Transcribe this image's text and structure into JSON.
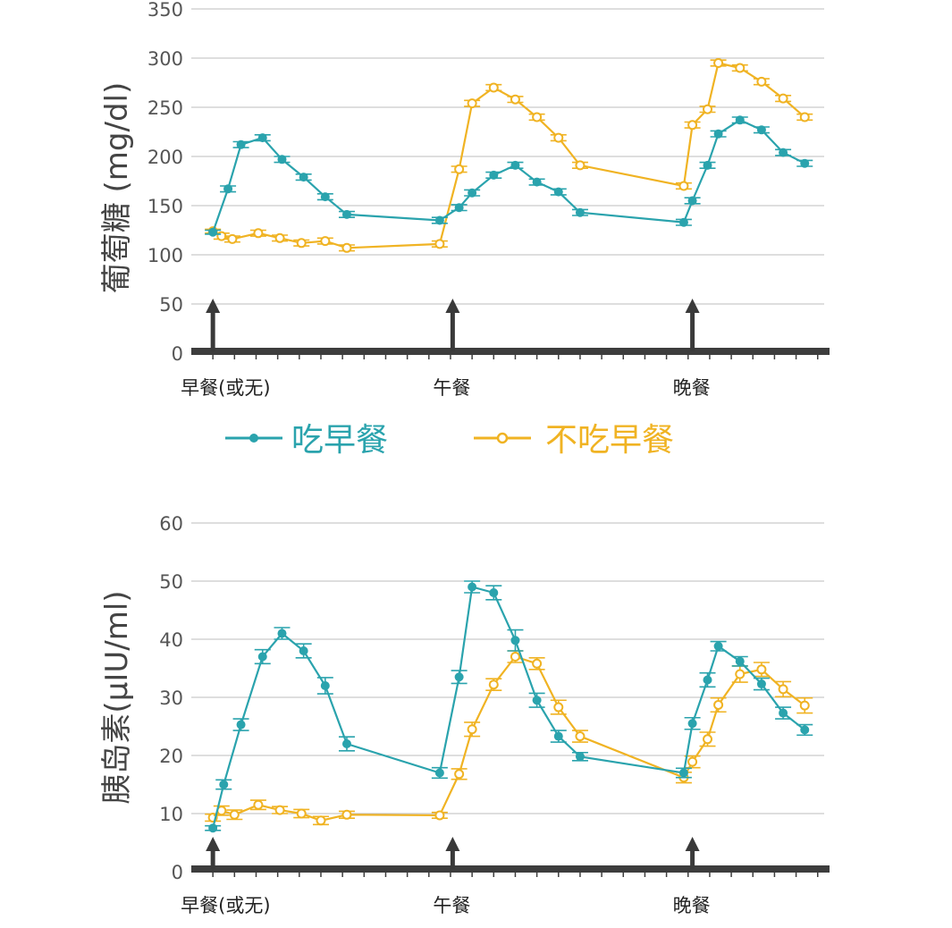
{
  "colors": {
    "breakfast": "#2aa3ad",
    "no_breakfast": "#f0b323",
    "axis": "#3d3d3d",
    "arrow": "#3a3a3a"
  },
  "legend": {
    "breakfast_label": "吃早餐",
    "no_breakfast_label": "不吃早餐"
  },
  "chart_data": [
    {
      "type": "line",
      "ylabel": "葡萄糖 (mg/dl)",
      "xlabel": "",
      "ylim": [
        0,
        350
      ],
      "yticks": [
        0,
        50,
        100,
        150,
        200,
        250,
        300,
        350
      ],
      "grid": true,
      "x_axis": "time, unlabeled",
      "meal_markers": [
        {
          "x": 1,
          "label": "早餐(或无)"
        },
        {
          "x": 12.1,
          "label": "午餐"
        },
        {
          "x": 23.2,
          "label": "晚餐"
        }
      ],
      "series": [
        {
          "name": "吃早餐",
          "marker": "filled-circle",
          "x": [
            1,
            1.7,
            2.3,
            3.3,
            4.2,
            5.2,
            6.2,
            7.2,
            11.5,
            12.4,
            13.0,
            14.0,
            15.0,
            16.0,
            17.0,
            18.0,
            22.8,
            23.2,
            23.9,
            24.4,
            25.4,
            26.4,
            27.4,
            28.4
          ],
          "y": [
            123,
            167,
            212,
            219,
            197,
            179,
            159,
            141,
            135,
            148,
            163,
            181,
            191,
            174,
            164,
            143,
            133,
            155,
            191,
            223,
            237,
            227,
            204,
            193
          ],
          "error": [
            2,
            3,
            3,
            3,
            3,
            3,
            3,
            3,
            3,
            3,
            3,
            3,
            3,
            3,
            3,
            3,
            3,
            3,
            3,
            3,
            3,
            3,
            3,
            3
          ]
        },
        {
          "name": "不吃早餐",
          "marker": "open-circle",
          "x": [
            1,
            1.4,
            1.9,
            3.1,
            4.1,
            5.1,
            6.2,
            7.2,
            11.5,
            12.4,
            13.0,
            14.0,
            15.0,
            16.0,
            17.0,
            18.0,
            22.8,
            23.2,
            23.9,
            24.4,
            25.4,
            26.4,
            27.4,
            28.4
          ],
          "y": [
            124,
            119,
            116,
            122,
            117,
            112,
            114,
            107,
            111,
            187,
            254,
            270,
            258,
            240,
            219,
            191,
            170,
            232,
            248,
            295,
            290,
            276,
            259,
            240
          ],
          "error": [
            2,
            3,
            3,
            3,
            3,
            3,
            3,
            3,
            3,
            3,
            3,
            3,
            3,
            3,
            3,
            3,
            3,
            3,
            3,
            3,
            3,
            3,
            3,
            3
          ]
        }
      ]
    },
    {
      "type": "line",
      "ylabel": "胰岛素(μIU/ml)",
      "xlabel": "",
      "ylim": [
        0,
        60
      ],
      "yticks": [
        0,
        10,
        20,
        30,
        40,
        50,
        60
      ],
      "grid": true,
      "x_axis": "time, unlabeled",
      "meal_markers": [
        {
          "x": 1,
          "label": "早餐(或无)"
        },
        {
          "x": 12.1,
          "label": "午餐"
        },
        {
          "x": 23.2,
          "label": "晚餐"
        }
      ],
      "series": [
        {
          "name": "吃早餐",
          "marker": "filled-circle",
          "x": [
            1,
            1.5,
            2.3,
            3.3,
            4.2,
            5.2,
            6.2,
            7.2,
            11.5,
            12.4,
            13.0,
            14.0,
            15.0,
            16.0,
            17.0,
            18.0,
            22.8,
            23.2,
            23.9,
            24.4,
            25.4,
            26.4,
            27.4,
            28.4
          ],
          "y": [
            7.5,
            15,
            25.3,
            37,
            41,
            38,
            32,
            22,
            17,
            33.5,
            49,
            48,
            39.8,
            29.5,
            23.3,
            19.8,
            17,
            25.5,
            33,
            38.8,
            36.2,
            32.3,
            27.3,
            24.4
          ],
          "error": [
            0.4,
            0.8,
            1.0,
            1.2,
            1.0,
            1.2,
            1.4,
            1.2,
            0.9,
            1.1,
            1.0,
            1.2,
            1.8,
            1.2,
            1.0,
            0.7,
            0.8,
            1.0,
            1.2,
            0.8,
            0.8,
            1.0,
            1.0,
            0.9
          ]
        },
        {
          "name": "不吃早餐",
          "marker": "open-circle",
          "x": [
            1,
            1.4,
            2.0,
            3.1,
            4.1,
            5.1,
            6.0,
            7.2,
            11.5,
            12.4,
            13.0,
            14.0,
            15.0,
            16.0,
            17.0,
            18.0,
            22.8,
            23.2,
            23.9,
            24.4,
            25.4,
            26.4,
            27.4,
            28.4
          ],
          "y": [
            9.3,
            10.5,
            9.8,
            11.5,
            10.6,
            10.0,
            8.8,
            9.8,
            9.7,
            16.8,
            24.5,
            32.2,
            37,
            35.8,
            28.3,
            23.3,
            16.2,
            18.9,
            22.8,
            28.7,
            34,
            34.8,
            31.4,
            28.6
          ],
          "error": [
            0.6,
            0.8,
            0.8,
            0.8,
            0.6,
            0.7,
            0.7,
            0.6,
            0.5,
            0.9,
            1.2,
            1.0,
            1.0,
            1.0,
            1.2,
            1.0,
            0.9,
            1.0,
            1.2,
            1.2,
            1.4,
            1.2,
            1.3,
            1.3
          ]
        }
      ]
    }
  ]
}
